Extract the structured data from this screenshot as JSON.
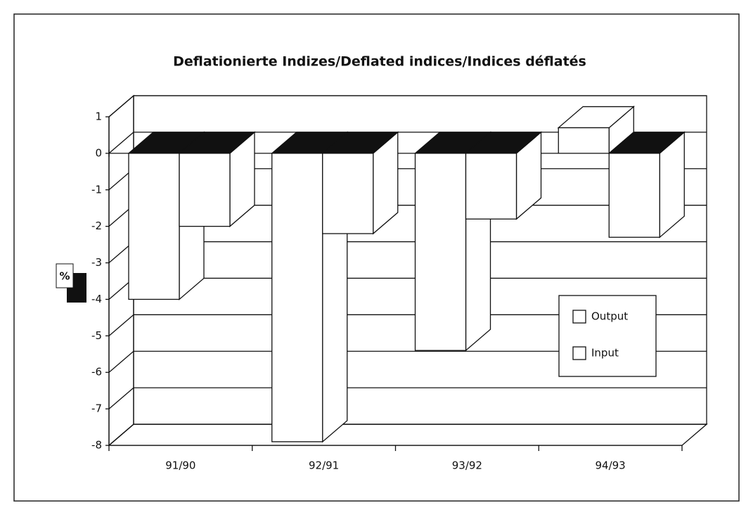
{
  "chart_data": {
    "type": "bar",
    "title": "Deflationierte Indizes/Deflated indices/Indices déflatés",
    "y_label": "%",
    "categories": [
      "91/90",
      "92/91",
      "93/92",
      "94/93"
    ],
    "series": [
      {
        "name": "Output",
        "color": "#ffffff",
        "values": [
          -4,
          -7.9,
          -5.4,
          0.7
        ]
      },
      {
        "name": "Input",
        "color": "#ffffff",
        "values": [
          -2,
          -2.2,
          -1.8,
          -2.3
        ]
      }
    ],
    "ylim": [
      -8,
      1
    ],
    "yticks": [
      -8,
      -7,
      -6,
      -5,
      -4,
      -3,
      -2,
      -1,
      0,
      1
    ],
    "grid": true,
    "legend": "right"
  }
}
